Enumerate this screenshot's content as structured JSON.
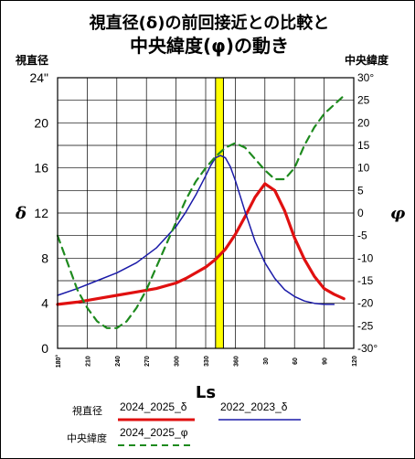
{
  "title_line1": "視直径(δ)の前回接近との比較と",
  "title_line2": "中央緯度(φ)の動き",
  "left_axis_title": "視直径",
  "right_axis_title": "中央緯度",
  "left_symbol": "δ",
  "right_symbol": "φ",
  "left_unit": "\"",
  "right_unit": "°",
  "xlabel": "Ls",
  "legend": {
    "group_delta": "視直径",
    "group_phi": "中央緯度",
    "series_2024_delta": "2024_2025_δ",
    "series_2022_delta": "2022_2023_δ",
    "series_2024_phi": "2024_2025_φ"
  },
  "colors": {
    "red": "#e01010",
    "blue": "#1a1aa8",
    "green": "#1e8a1e",
    "highlight": "#ffff00"
  },
  "chart_data": {
    "type": "line",
    "x_ticks": [
      "180°",
      "210",
      "240",
      "270",
      "300",
      "330",
      "360",
      "30",
      "60",
      "90",
      "120"
    ],
    "x_range": [
      180,
      480
    ],
    "left_ticks": [
      "0",
      "4",
      "8",
      "12",
      "16",
      "20",
      "24\""
    ],
    "left_ylim": [
      0,
      24
    ],
    "right_ticks": [
      "-30°",
      "-25",
      "-20",
      "-15",
      "-10",
      "-5",
      "0",
      "5",
      "10",
      "15",
      "20",
      "25",
      "30°"
    ],
    "right_ylim": [
      -30,
      30
    ],
    "highlight_band": [
      340,
      348
    ],
    "reference_lines": [
      340,
      348
    ],
    "series": [
      {
        "name": "2024_2025_δ",
        "axis": "left",
        "color": "red",
        "dash": "solid",
        "x": [
          180,
          200,
          220,
          240,
          260,
          280,
          300,
          310,
          320,
          330,
          340,
          350,
          360,
          370,
          380,
          390,
          400,
          410,
          420,
          430,
          440,
          450,
          460,
          470
        ],
        "y": [
          3.9,
          4.1,
          4.4,
          4.7,
          5.0,
          5.3,
          5.8,
          6.2,
          6.7,
          7.2,
          7.9,
          8.8,
          10.1,
          11.7,
          13.4,
          14.6,
          14.0,
          12.2,
          9.8,
          7.9,
          6.4,
          5.3,
          4.8,
          4.4
        ]
      },
      {
        "name": "2022_2023_δ",
        "axis": "left",
        "color": "blue",
        "dash": "solid",
        "x": [
          180,
          200,
          220,
          240,
          260,
          280,
          300,
          310,
          320,
          330,
          335,
          340,
          345,
          350,
          355,
          360,
          370,
          380,
          390,
          400,
          410,
          420,
          430,
          440,
          450,
          460
        ],
        "y": [
          4.7,
          5.3,
          6.0,
          6.7,
          7.6,
          8.9,
          10.8,
          12.1,
          13.6,
          15.3,
          16.2,
          16.9,
          17.1,
          16.9,
          16.1,
          14.9,
          12.1,
          9.5,
          7.6,
          6.2,
          5.2,
          4.6,
          4.2,
          4.0,
          3.9,
          3.9
        ]
      },
      {
        "name": "2024_2025_φ",
        "axis": "right",
        "color": "green",
        "dash": "dashed",
        "x": [
          180,
          190,
          200,
          210,
          220,
          230,
          240,
          250,
          260,
          270,
          280,
          290,
          300,
          310,
          320,
          330,
          340,
          350,
          360,
          370,
          380,
          390,
          400,
          410,
          420,
          430,
          440,
          450,
          460,
          470
        ],
        "y": [
          -5,
          -11,
          -17,
          -21,
          -24,
          -25.5,
          -25.5,
          -24,
          -21,
          -17,
          -12,
          -7,
          -2,
          3,
          7,
          10,
          12.5,
          14.5,
          15.5,
          14.5,
          12,
          9.5,
          7.5,
          7.5,
          10,
          15,
          19,
          22,
          24,
          26
        ]
      }
    ]
  }
}
